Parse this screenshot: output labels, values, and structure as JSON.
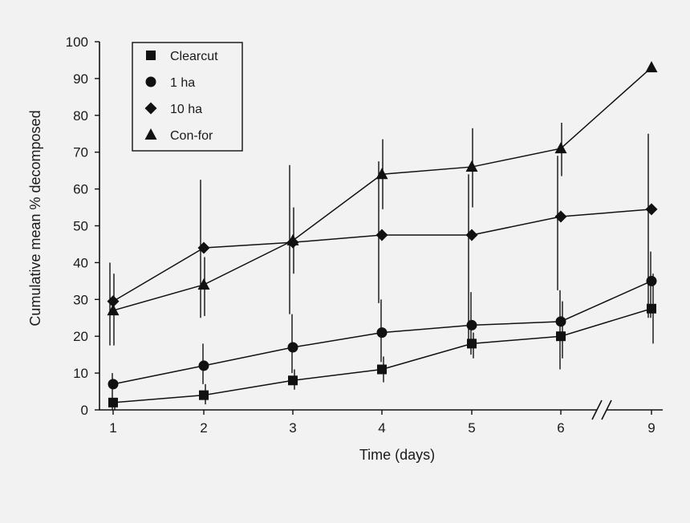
{
  "chart_data": {
    "type": "line",
    "title": "",
    "xlabel": "Time (days)",
    "ylabel": "Cumulative mean % decomposed",
    "x_ticks": [
      "1",
      "2",
      "3",
      "4",
      "5",
      "6",
      "9"
    ],
    "y_ticks": [
      "0",
      "10",
      "20",
      "30",
      "40",
      "50",
      "60",
      "70",
      "80",
      "90",
      "100"
    ],
    "ylim": [
      0,
      100
    ],
    "axis_break": "between 6 and 9",
    "legend_position": "top-left",
    "series": [
      {
        "name": "Clearcut",
        "marker": "square",
        "values": [
          2,
          4,
          8,
          11,
          18,
          20,
          27.5
        ],
        "err_low": [
          0,
          1.5,
          5.5,
          7.5,
          14,
          14,
          18
        ],
        "err_high": [
          3,
          7,
          11,
          14.5,
          21,
          29.5,
          37
        ]
      },
      {
        "name": "1 ha",
        "marker": "circle",
        "values": [
          7,
          12,
          17,
          21,
          23,
          24,
          35
        ],
        "err_low": [
          0,
          7,
          10,
          13,
          15,
          11,
          25
        ],
        "err_high": [
          10,
          18,
          26,
          30,
          32,
          32.5,
          43
        ]
      },
      {
        "name": "10 ha",
        "marker": "diamond",
        "values": [
          29.5,
          44,
          45.5,
          47.5,
          47.5,
          52.5,
          54.5
        ],
        "err_low": [
          17.5,
          25,
          26,
          29,
          19,
          32.5,
          25
        ],
        "err_high": [
          40,
          62.5,
          66.5,
          67.5,
          64,
          69,
          75
        ]
      },
      {
        "name": "Con-for",
        "marker": "triangle",
        "values": [
          27,
          34,
          46,
          64,
          66,
          71,
          93
        ],
        "err_low": [
          17.5,
          25.5,
          37,
          54.5,
          55,
          63.5,
          93
        ],
        "err_high": [
          37,
          41.5,
          55,
          73.5,
          76.5,
          78,
          93
        ]
      }
    ]
  }
}
